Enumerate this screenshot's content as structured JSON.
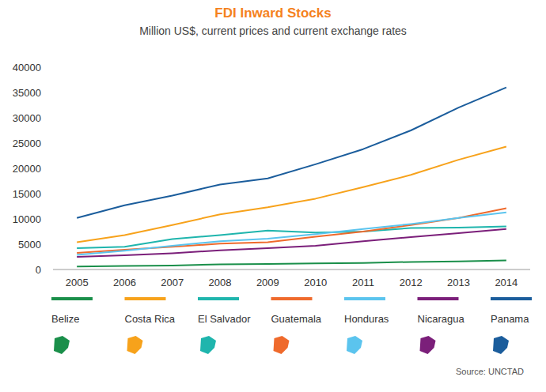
{
  "chart_data": {
    "type": "line",
    "title": "FDI Inward Stocks",
    "subtitle": "Million US$, current prices and current exchange rates",
    "categories": [
      "2005",
      "2006",
      "2007",
      "2008",
      "2009",
      "2010",
      "2011",
      "2012",
      "2013",
      "2014"
    ],
    "series": [
      {
        "name": "Belize",
        "color": "#1a8f4a",
        "values": [
          600,
          700,
          800,
          1000,
          1100,
          1200,
          1300,
          1500,
          1600,
          1800
        ]
      },
      {
        "name": "Costa Rica",
        "color": "#f7a21b",
        "values": [
          5400,
          6800,
          8800,
          10900,
          12300,
          14000,
          16300,
          18700,
          21700,
          24300
        ]
      },
      {
        "name": "El Salvador",
        "color": "#1fb5ad",
        "values": [
          4200,
          4500,
          6000,
          6800,
          7700,
          7300,
          7500,
          8200,
          8300,
          8500
        ]
      },
      {
        "name": "Guatemala",
        "color": "#ef6a2c",
        "values": [
          3300,
          3900,
          4500,
          5100,
          5400,
          6500,
          7500,
          8800,
          10200,
          12100
        ]
      },
      {
        "name": "Honduras",
        "color": "#5bc4ee",
        "values": [
          2900,
          3700,
          4700,
          5600,
          6100,
          7000,
          8000,
          9000,
          10200,
          11300
        ]
      },
      {
        "name": "Nicaragua",
        "color": "#7b1f7a",
        "values": [
          2500,
          2800,
          3200,
          3800,
          4200,
          4700,
          5600,
          6400,
          7200,
          8000
        ]
      },
      {
        "name": "Panama",
        "color": "#1b5d9c",
        "values": [
          10200,
          12700,
          14600,
          16800,
          18000,
          20800,
          23800,
          27500,
          32000,
          36000
        ]
      }
    ],
    "ylim": [
      0,
      40000
    ],
    "yticks": [
      0,
      5000,
      10000,
      15000,
      20000,
      25000,
      30000,
      35000,
      40000
    ],
    "grid": false,
    "legend": "bottom",
    "annotations": [
      "Source: UNCTAD"
    ]
  }
}
